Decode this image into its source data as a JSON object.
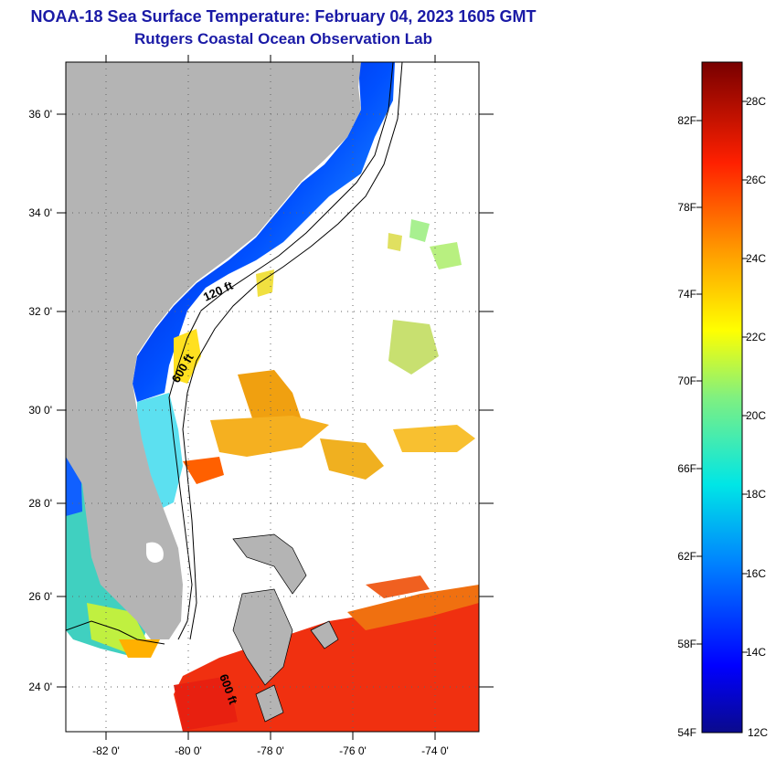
{
  "title": "NOAA-18 Sea Surface Temperature:  February 04, 2023 1605 GMT",
  "subtitle": "Rutgers Coastal Ocean Observation Lab",
  "map": {
    "lon_labels": [
      "-82 0'",
      "-80 0'",
      "-78 0'",
      "-76 0'",
      "-74 0'"
    ],
    "lat_labels": [
      "36 0'",
      "34 0'",
      "32 0'",
      "30 0'",
      "28 0'",
      "26 0'",
      "24 0'"
    ],
    "contour_labels": [
      "120 ft",
      "600 ft",
      "600 ft"
    ],
    "land_color": "#b4b4b4"
  },
  "colorbar": {
    "f_labels": [
      "82F",
      "78F",
      "74F",
      "70F",
      "66F",
      "62F",
      "58F",
      "54F"
    ],
    "c_labels": [
      "28C",
      "26C",
      "24C",
      "22C",
      "20C",
      "18C",
      "16C",
      "14C",
      "12C"
    ]
  }
}
